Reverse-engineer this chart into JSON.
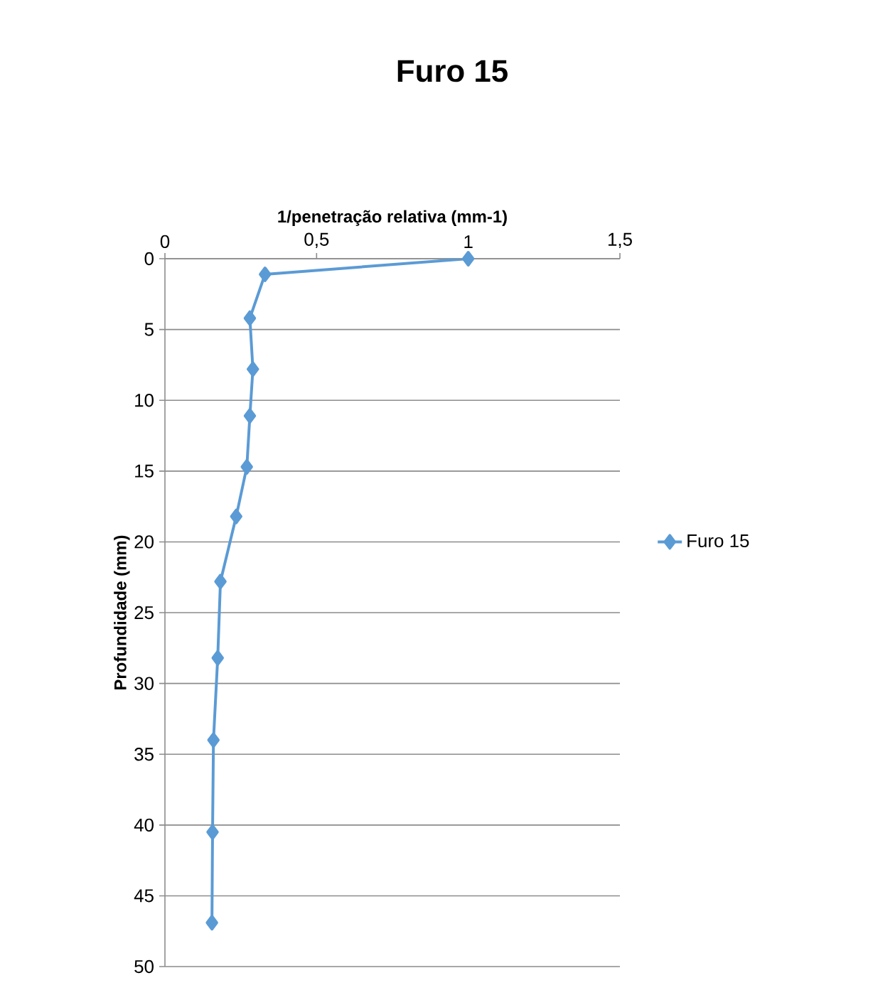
{
  "chart_data": {
    "type": "line",
    "title": "Furo 15",
    "xlabel": "1/penetração relativa (mm-1)",
    "ylabel": "Profundidade (mm)",
    "series": [
      {
        "name": "Furo 15",
        "color": "#5b9bd5",
        "x": [
          1,
          0.33,
          0.28,
          0.29,
          0.28,
          0.27,
          0.235,
          0.183,
          0.174,
          0.16,
          0.157,
          0.155
        ],
        "values": [
          0,
          1.1,
          4.2,
          7.8,
          11.1,
          14.7,
          18.2,
          22.8,
          28.2,
          34.0,
          40.5,
          46.9
        ]
      }
    ],
    "xlim": [
      0,
      1.5
    ],
    "ylim": [
      50,
      0
    ],
    "xticks": [
      0,
      {
        "value": 0.5,
        "label": "0,5"
      },
      1,
      {
        "value": 1.5,
        "label": "1,5"
      }
    ],
    "yticks": [
      0,
      5,
      10,
      15,
      20,
      25,
      30,
      35,
      40,
      45,
      50
    ],
    "grid": "y",
    "legend": "right",
    "marker": "diamond",
    "line_style": "solid"
  }
}
